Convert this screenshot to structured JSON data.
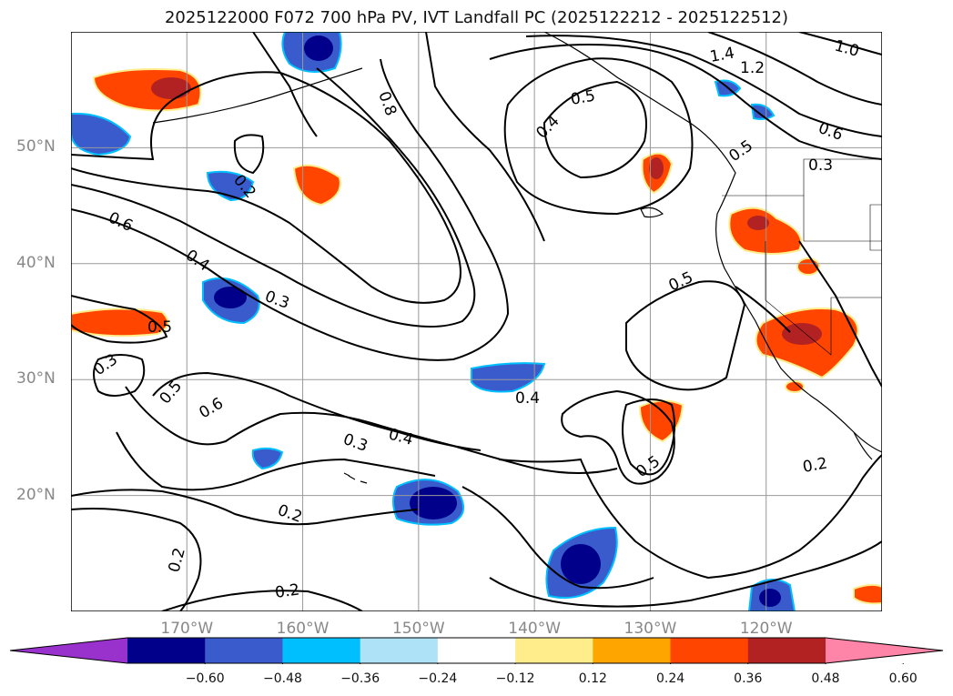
{
  "title": "2025122000 F072 700 hPa PV, IVT Landfall PC (2025122212 - 2025122512)",
  "map": {
    "projection": "PlateCarree",
    "extent": {
      "lon": [
        -180,
        -110
      ],
      "lat": [
        10,
        60
      ]
    },
    "gridlines": true,
    "lat_ticks": [
      {
        "value": 50,
        "label": "50°N"
      },
      {
        "value": 40,
        "label": "40°N"
      },
      {
        "value": 30,
        "label": "30°N"
      },
      {
        "value": 20,
        "label": "20°N"
      }
    ],
    "lon_ticks": [
      {
        "value": -170,
        "label": "170°W"
      },
      {
        "value": -160,
        "label": "160°W"
      },
      {
        "value": -150,
        "label": "150°W"
      },
      {
        "value": -140,
        "label": "140°W"
      },
      {
        "value": -130,
        "label": "130°W"
      },
      {
        "value": -120,
        "label": "120°W"
      }
    ],
    "contour_labels": [
      "0.8",
      "1.0",
      "1.2",
      "1.4",
      "0.5",
      "0.4",
      "0.6",
      "0.2",
      "0.5",
      "0.3",
      "0.6",
      "0.4",
      "0.3",
      "0.5",
      "0.5",
      "0.3",
      "0.5",
      "0.6",
      "0.3",
      "0.4",
      "0.4",
      "0.5",
      "0.2",
      "0.2",
      "0.2",
      "0.2"
    ]
  },
  "colorbar": {
    "colors": [
      "#9932cc",
      "#00008b",
      "#3a5bcc",
      "#00bfff",
      "#aee3f7",
      "#ffffff",
      "#ffec8b",
      "#ffa500",
      "#ff4500",
      "#b22222",
      "#ff85a8"
    ],
    "tick_labels": [
      "−0.60",
      "−0.48",
      "−0.36",
      "−0.24",
      "−0.12",
      "0.12",
      "0.24",
      "0.36",
      "0.48",
      "0.60"
    ],
    "extend": "both"
  }
}
